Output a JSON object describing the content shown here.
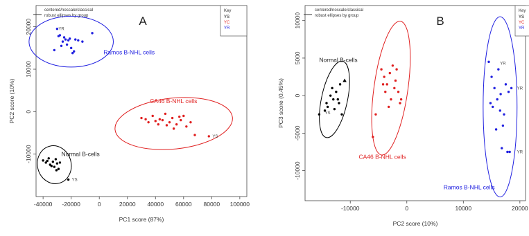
{
  "chart_data": [
    {
      "type": "scatter",
      "panel_label": "A",
      "xlabel": "PC1 score (87%)",
      "ylabel": "PC2 score (10%)",
      "xlim": [
        -45000,
        105000
      ],
      "ylim": [
        -20000,
        25000
      ],
      "xticks": [
        -40000,
        -20000,
        0,
        20000,
        40000,
        60000,
        80000,
        100000
      ],
      "yticks": [
        -10000,
        0,
        10000,
        20000
      ],
      "legend_lines": [
        "centered/noscale/classical",
        "robust ellipses by group"
      ],
      "key": {
        "title": "Key",
        "entries": [
          "YS",
          "YC",
          "YR"
        ],
        "colors": [
          "#000000",
          "#e02020",
          "#2020e0"
        ]
      },
      "series": [
        {
          "name": "Ramos B-NHL cells",
          "color": "#2020e0",
          "x": [
            -30000,
            -28000,
            -25000,
            -27000,
            -22000,
            -20000,
            -18000,
            -24000,
            -26000,
            -32000,
            -29000,
            -21000,
            -15000,
            -19000,
            -23000,
            -12000,
            -5000,
            -17000
          ],
          "y": [
            19500,
            18000,
            17500,
            15500,
            16800,
            15000,
            14200,
            17000,
            16500,
            14500,
            17800,
            17200,
            16800,
            13800,
            15800,
            16500,
            18500,
            17000
          ]
        },
        {
          "name": "CA46 B-NHL cells",
          "color": "#e02020",
          "x": [
            30000,
            35000,
            38000,
            42000,
            45000,
            47000,
            50000,
            52000,
            55000,
            58000,
            60000,
            62000,
            65000,
            43000,
            48000,
            40000,
            33000,
            53000,
            57000,
            68000,
            78000
          ],
          "y": [
            -1500,
            -2500,
            -1000,
            -3000,
            -2000,
            -500,
            -2500,
            -1500,
            -3000,
            -2000,
            -1000,
            -3500,
            -2500,
            -1800,
            -3200,
            -2200,
            -1800,
            -4000,
            -1200,
            -5500,
            -5800
          ]
        },
        {
          "name": "Normal B-cells",
          "color": "#000000",
          "x": [
            -40000,
            -38000,
            -36000,
            -35000,
            -33000,
            -32000,
            -30000,
            -31000,
            -34000,
            -29000,
            -28000,
            -37000,
            -30500,
            -22000
          ],
          "y": [
            -11500,
            -12000,
            -11000,
            -12500,
            -11800,
            -13000,
            -12200,
            -11200,
            -12800,
            -13500,
            -12000,
            -11600,
            -13800,
            -16000
          ]
        }
      ],
      "point_labels": [
        {
          "text": "YS",
          "x": 80500,
          "y": -5800
        },
        {
          "text": "YS",
          "x": -19500,
          "y": -16000
        },
        {
          "text": "YR",
          "x": -29000,
          "y": 19500
        }
      ],
      "ellipses": [
        {
          "group": "Ramos B-NHL cells",
          "color": "#2020e0",
          "cx": -20000,
          "cy": 16500,
          "rx": 30000,
          "ry": 6000,
          "angle": 0
        },
        {
          "group": "CA46 B-NHL cells",
          "color": "#e02020",
          "cx": 53000,
          "cy": -2800,
          "rx": 42000,
          "ry": 6000,
          "angle": -6
        },
        {
          "group": "Normal B-cells",
          "color": "#000000",
          "cx": -32000,
          "cy": -12500,
          "rx": 12000,
          "ry": 4500,
          "angle": -14
        }
      ],
      "group_labels": [
        {
          "text": "Ramos B-NHL cells",
          "color": "#2020e0",
          "x": 3000,
          "y": 13500
        },
        {
          "text": "CA46 B-NHL cells",
          "color": "#e02020",
          "x": 36000,
          "y": 2000
        },
        {
          "text": "Normal B-cells",
          "color": "#222222",
          "x": -27000,
          "y": -10500
        }
      ]
    },
    {
      "type": "scatter",
      "panel_label": "B",
      "xlabel": "PC2 score (10%)",
      "ylabel": "PC3 score (0.45%)",
      "xlim": [
        -18000,
        21000
      ],
      "ylim": [
        -14000,
        12000
      ],
      "xticks": [
        -10000,
        0,
        10000,
        20000
      ],
      "yticks": [
        -10000,
        -5000,
        0,
        5000,
        10000
      ],
      "legend_lines": [
        "centered/noscale/classical",
        "robust ellipses by group"
      ],
      "key": {
        "title": "Key",
        "entries": [
          "YS",
          "YC",
          "YR"
        ],
        "colors": [
          "#000000",
          "#e02020",
          "#2020e0"
        ]
      },
      "series": [
        {
          "name": "Normal B-cells",
          "color": "#000000",
          "x": [
            -15500,
            -14000,
            -13000,
            -12500,
            -12000,
            -13500,
            -14500,
            -11500,
            -12800,
            -13200,
            -12200,
            -14200,
            -11800,
            -11000
          ],
          "y": [
            -2500,
            -1500,
            -500,
            500,
            -1000,
            0,
            -2000,
            -2500,
            -1800,
            1000,
            -500,
            -1000,
            1500,
            2000
          ],
          "shapes": [
            "dot",
            "dot",
            "dot",
            "dot",
            "dot",
            "dot",
            "dot",
            "dot",
            "dot",
            "dot",
            "dot",
            "dot",
            "dot",
            "triangle"
          ]
        },
        {
          "name": "CA46 B-NHL cells",
          "color": "#e02020",
          "x": [
            -4500,
            -4000,
            -3500,
            -3000,
            -2500,
            -2000,
            -1500,
            -1000,
            -3800,
            -2800,
            -2200,
            -4200,
            -3200,
            -1800,
            -5500,
            -6000,
            -1200
          ],
          "y": [
            3500,
            2500,
            1500,
            3000,
            4000,
            2000,
            500,
            -500,
            500,
            -500,
            1000,
            1500,
            -1500,
            3500,
            -2500,
            -5500,
            -1000
          ]
        },
        {
          "name": "Ramos B-NHL cells",
          "color": "#2020e0",
          "x": [
            14500,
            15000,
            15500,
            16000,
            16500,
            17000,
            17500,
            18000,
            15200,
            16200,
            17200,
            14800,
            16800,
            18500,
            15800,
            17800,
            16600,
            18200
          ],
          "y": [
            4500,
            2500,
            1000,
            -500,
            -2000,
            -4000,
            1500,
            500,
            -1500,
            3500,
            -2500,
            -1000,
            -7000,
            1000,
            -4500,
            -7500,
            200,
            -7500
          ]
        }
      ],
      "point_labels": [
        {
          "text": "YR",
          "x": 16500,
          "y": 4300
        },
        {
          "text": "YR",
          "x": 19500,
          "y": 1000
        },
        {
          "text": "YR",
          "x": 19500,
          "y": -7500
        },
        {
          "text": "YS",
          "x": -14500,
          "y": -2300
        }
      ],
      "ellipses": [
        {
          "group": "Normal B-cells",
          "color": "#000000",
          "cx": -12800,
          "cy": -500,
          "rx": 2300,
          "ry": 5200,
          "angle": 12
        },
        {
          "group": "CA46 B-NHL cells",
          "color": "#e02020",
          "cx": -2800,
          "cy": 1000,
          "rx": 3000,
          "ry": 9000,
          "angle": 8
        },
        {
          "group": "Ramos B-NHL cells",
          "color": "#2020e0",
          "cx": 16500,
          "cy": -1500,
          "rx": 3000,
          "ry": 12000,
          "angle": 0
        }
      ],
      "group_labels": [
        {
          "text": "Normal B-cells",
          "color": "#222222",
          "x": -15500,
          "y": 4500
        },
        {
          "text": "CA46 B-NHL cells",
          "color": "#e02020",
          "x": -8500,
          "y": -8400
        },
        {
          "text": "Ramos B-NHL cells",
          "color": "#2020e0",
          "x": 6500,
          "y": -12500
        }
      ]
    }
  ]
}
